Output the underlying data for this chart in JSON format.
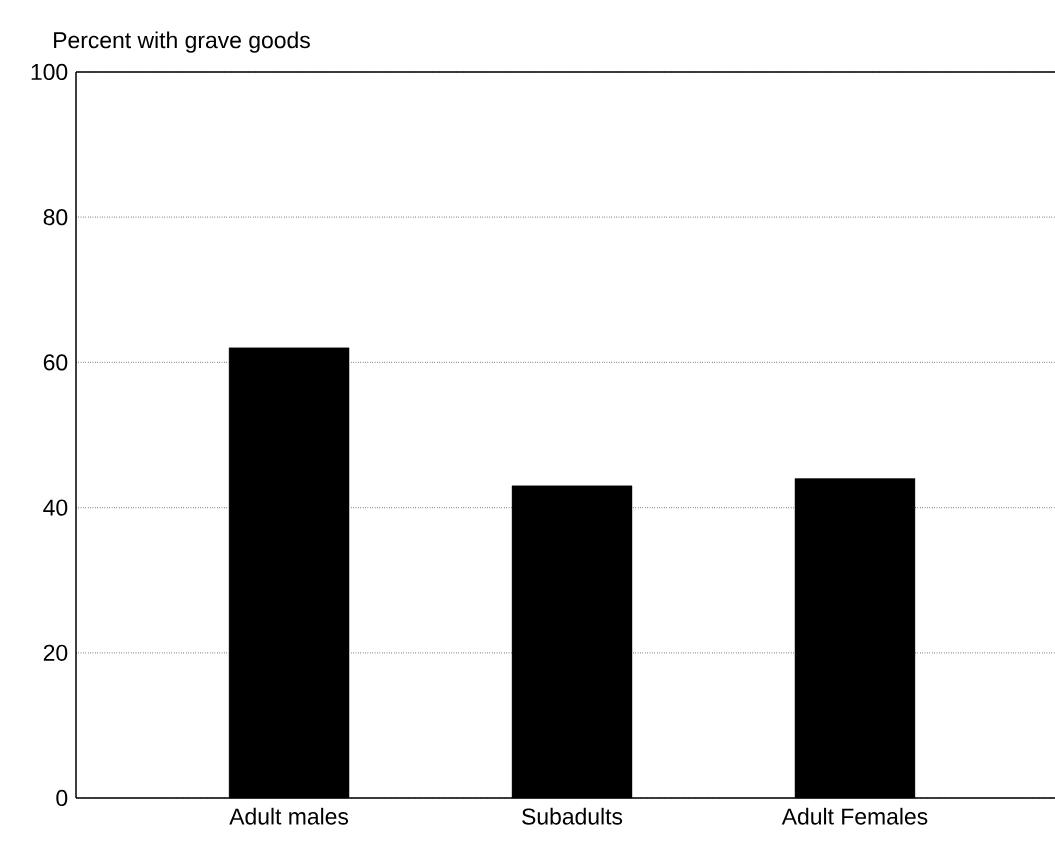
{
  "chart_data": {
    "type": "bar",
    "ylabel": "Percent with grave goods",
    "categories": [
      "Adult males",
      "Subadults",
      "Adult Females"
    ],
    "values": [
      62,
      43,
      44
    ],
    "color": "#000000",
    "ylim": [
      0,
      100
    ],
    "yticks": [
      0,
      20,
      40,
      60,
      80,
      100
    ],
    "grid": "y"
  }
}
